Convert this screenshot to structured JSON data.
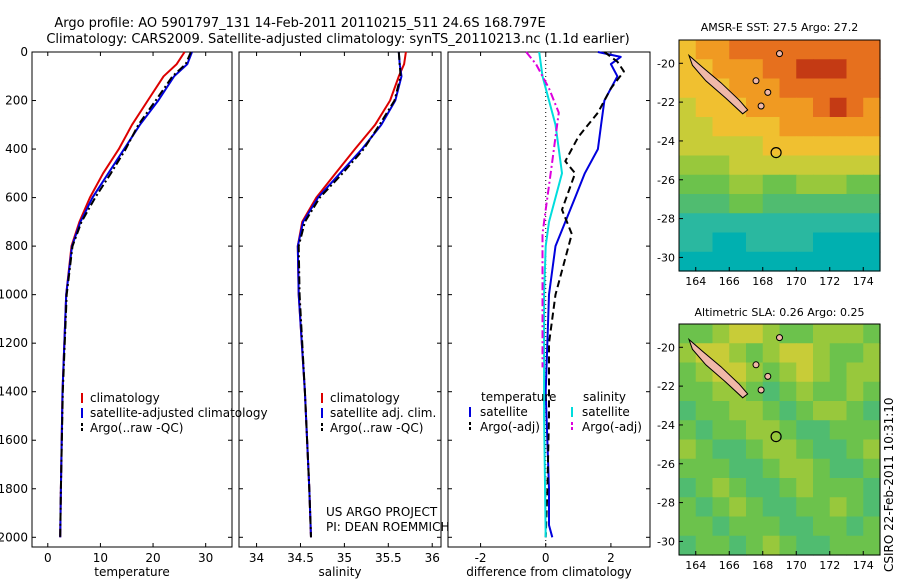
{
  "title": {
    "line1": "Argo profile: AO 5901797_131 14-Feb-2011 20110215_511 24.6S 168.797E",
    "line2": "Climatology: CARS2009. Satellite-adjusted climatology: synTS_20110213.nc (1.1d earlier)"
  },
  "credit": {
    "project": "US ARGO PROJECT",
    "pi": "PI: DEAN ROEMMICH",
    "stamp": "CSIRO 22-Feb-2011 10:31:10"
  },
  "chart_data": [
    {
      "type": "line",
      "id": "temperature",
      "xlabel": "temperature",
      "xticks": [
        0,
        10,
        20,
        30
      ],
      "xlim": [
        -3,
        35
      ],
      "yticks": [
        0,
        200,
        400,
        600,
        800,
        1000,
        1200,
        1400,
        1600,
        1800,
        2000
      ],
      "ylim": [
        2040,
        0
      ],
      "reversed_y": true,
      "legend": [
        "climatology",
        "satellite-adjusted climatology",
        "Argo(..raw -QC)"
      ],
      "series": [
        {
          "name": "climatology",
          "color": "#dd0000",
          "dash": "solid",
          "x": [
            26,
            24.5,
            22,
            19,
            16,
            13.5,
            10.5,
            8,
            6,
            4.5,
            3.5,
            2.8,
            2.5,
            2.35
          ],
          "y": [
            0,
            50,
            100,
            200,
            300,
            400,
            500,
            600,
            700,
            800,
            1000,
            1400,
            1800,
            2000
          ]
        },
        {
          "name": "satellite-adjusted climatology",
          "color": "#0000dd",
          "dash": "solid",
          "x": [
            27.4,
            26.5,
            24,
            21,
            17.5,
            14.5,
            11.5,
            8.5,
            6.2,
            4.6,
            3.5,
            2.8,
            2.5,
            2.35
          ],
          "y": [
            0,
            50,
            100,
            200,
            300,
            400,
            500,
            600,
            700,
            800,
            1000,
            1400,
            1800,
            2000
          ]
        },
        {
          "name": "Argo(..raw -QC)",
          "color": "#000000",
          "dash": "dashdot",
          "x": [
            27.2,
            26.2,
            23.7,
            20.5,
            17.2,
            14.8,
            12,
            9,
            6.4,
            4.7,
            3.6,
            2.85,
            2.5,
            2.35
          ],
          "y": [
            0,
            50,
            100,
            200,
            300,
            400,
            500,
            600,
            700,
            800,
            1000,
            1400,
            1800,
            2000
          ]
        }
      ]
    },
    {
      "type": "line",
      "id": "salinity",
      "xlabel": "salinity",
      "xticks": [
        34,
        34.5,
        35,
        35.5,
        36
      ],
      "xtick_labels": [
        "34",
        "34.5",
        "35",
        "35.5",
        "36"
      ],
      "xlim": [
        33.8,
        36.1
      ],
      "ylim": [
        2040,
        0
      ],
      "reversed_y": true,
      "legend": [
        "climatology",
        "satellite adj. clim.",
        "Argo(..raw -QC)"
      ],
      "series": [
        {
          "name": "climatology",
          "color": "#dd0000",
          "dash": "solid",
          "x": [
            35.7,
            35.68,
            35.62,
            35.52,
            35.35,
            35.12,
            34.9,
            34.68,
            34.52,
            34.47,
            34.48,
            34.55,
            34.6,
            34.62
          ],
          "y": [
            0,
            50,
            100,
            200,
            300,
            400,
            500,
            600,
            700,
            800,
            1000,
            1400,
            1800,
            2000
          ]
        },
        {
          "name": "satellite adj. clim.",
          "color": "#0000dd",
          "dash": "solid",
          "x": [
            35.62,
            35.63,
            35.65,
            35.58,
            35.42,
            35.2,
            34.95,
            34.7,
            34.53,
            34.47,
            34.48,
            34.55,
            34.6,
            34.62
          ],
          "y": [
            0,
            50,
            100,
            200,
            300,
            400,
            500,
            600,
            700,
            800,
            1000,
            1400,
            1800,
            2000
          ]
        },
        {
          "name": "Argo(..raw -QC)",
          "color": "#000000",
          "dash": "dashdot",
          "x": [
            35.62,
            35.63,
            35.64,
            35.57,
            35.4,
            35.22,
            34.98,
            34.72,
            34.55,
            34.48,
            34.49,
            34.55,
            34.6,
            34.62
          ],
          "y": [
            0,
            50,
            100,
            200,
            300,
            400,
            500,
            600,
            700,
            800,
            1000,
            1400,
            1800,
            2000
          ]
        }
      ]
    },
    {
      "type": "line",
      "id": "difference",
      "xlabel": "difference from climatology",
      "xticks": [
        -2,
        0,
        2
      ],
      "xlim": [
        -3,
        3.2
      ],
      "ylim": [
        2040,
        0
      ],
      "reversed_y": true,
      "legend_temperature_title": "temperature",
      "legend_salinity_title": "salinity",
      "legend": [
        "satellite",
        "Argo(-adj)",
        "satellite",
        "Argo(-adj)"
      ],
      "series": [
        {
          "name": "temperature satellite",
          "color": "#0000dd",
          "dash": "solid",
          "x": [
            1.6,
            2.3,
            2.0,
            2.2,
            1.8,
            1.7,
            1.6,
            1.2,
            0.9,
            0.6,
            0.3,
            0.1,
            0.0,
            0.1,
            0.1,
            0.2
          ],
          "y": [
            0,
            20,
            50,
            100,
            200,
            300,
            400,
            500,
            600,
            700,
            800,
            1000,
            1400,
            1800,
            1950,
            2000
          ]
        },
        {
          "name": "temperature Argo(-adj)",
          "color": "#000000",
          "dash": "dash",
          "x": [
            1.8,
            2.2,
            2.4,
            2.0,
            1.6,
            1.0,
            0.6,
            0.9,
            0.5,
            0.8,
            0.6,
            0.3,
            0.1,
            0.1,
            0.05,
            0.0
          ],
          "y": [
            0,
            40,
            80,
            150,
            250,
            350,
            450,
            500,
            650,
            750,
            850,
            1000,
            1200,
            1500,
            1800,
            2000
          ]
        },
        {
          "name": "salinity satellite",
          "color": "#00dddd",
          "dash": "solid",
          "x": [
            -0.2,
            -0.1,
            0.1,
            0.3,
            0.4,
            0.5,
            0.3,
            0.1,
            0.0,
            -0.05,
            -0.05,
            0.0
          ],
          "y": [
            0,
            100,
            200,
            300,
            400,
            500,
            600,
            700,
            800,
            1000,
            1500,
            2000
          ]
        },
        {
          "name": "salinity Argo(-adj)",
          "color": "#dd00dd",
          "dash": "dashdot",
          "x": [
            -0.6,
            -0.3,
            0.1,
            0.4,
            0.3,
            0.2,
            0.1,
            0.0,
            -0.1,
            -0.1,
            -0.1,
            -0.1
          ],
          "y": [
            0,
            50,
            150,
            250,
            350,
            450,
            550,
            650,
            750,
            900,
            1100,
            1300
          ]
        }
      ]
    },
    {
      "type": "heatmap",
      "id": "amsr-sst",
      "title": "AMSR-E SST: 27.5  Argo: 27.2",
      "xticks": [
        164,
        166,
        168,
        170,
        172,
        174
      ],
      "xlim": [
        163,
        175
      ],
      "yticks": [
        -20,
        -22,
        -24,
        -26,
        -28,
        -30
      ],
      "ylim": [
        -30.7,
        -18.8
      ],
      "argo_position": {
        "lon": 168.797,
        "lat": -24.6
      },
      "colors": [
        "#00b0b0",
        "#2ab8a0",
        "#50bc70",
        "#6cc24c",
        "#98c83c",
        "#c8cc38",
        "#f0c030",
        "#f09a22",
        "#e6701e",
        "#c43a14"
      ],
      "grid": [
        [
          6,
          7,
          7,
          8,
          8,
          8,
          8,
          8,
          8,
          8,
          8,
          8
        ],
        [
          6,
          6,
          7,
          7,
          7,
          8,
          8,
          9,
          9,
          9,
          8,
          8
        ],
        [
          6,
          6,
          6,
          7,
          7,
          7,
          8,
          8,
          8,
          8,
          8,
          8
        ],
        [
          5,
          6,
          6,
          6,
          7,
          7,
          7,
          7,
          8,
          9,
          8,
          7
        ],
        [
          5,
          5,
          6,
          6,
          6,
          6,
          7,
          7,
          7,
          7,
          7,
          7
        ],
        [
          5,
          5,
          5,
          5,
          5,
          6,
          6,
          6,
          6,
          6,
          6,
          6
        ],
        [
          4,
          4,
          4,
          5,
          5,
          5,
          5,
          5,
          5,
          5,
          5,
          5
        ],
        [
          3,
          3,
          3,
          4,
          4,
          3,
          3,
          4,
          4,
          4,
          3,
          3
        ],
        [
          2,
          2,
          2,
          3,
          3,
          2,
          2,
          2,
          2,
          2,
          2,
          2
        ],
        [
          1,
          1,
          1,
          1,
          1,
          1,
          1,
          1,
          1,
          1,
          1,
          1
        ],
        [
          1,
          1,
          0,
          0,
          1,
          1,
          1,
          1,
          0,
          0,
          0,
          0
        ],
        [
          0,
          0,
          0,
          0,
          0,
          0,
          0,
          0,
          0,
          0,
          0,
          0
        ]
      ]
    },
    {
      "type": "heatmap",
      "id": "altimetric-sla",
      "title": "Altimetric SLA: 0.26  Argo: 0.25",
      "xticks": [
        164,
        166,
        168,
        170,
        172,
        174
      ],
      "xlim": [
        163,
        175
      ],
      "yticks": [
        -20,
        -22,
        -24,
        -26,
        -28,
        -30
      ],
      "ylim": [
        -30.7,
        -18.8
      ],
      "argo_position": {
        "lon": 168.797,
        "lat": -24.6
      },
      "colors": [
        "#00b0b0",
        "#2ab8a0",
        "#50bc70",
        "#6cc24c",
        "#98c83c",
        "#c8cc38",
        "#f0c030",
        "#f09a22",
        "#e6701e",
        "#c43a14"
      ],
      "grid": [
        [
          3,
          3,
          4,
          5,
          5,
          4,
          3,
          3,
          4,
          4,
          4,
          3
        ],
        [
          4,
          5,
          5,
          4,
          3,
          4,
          5,
          5,
          4,
          3,
          3,
          4
        ],
        [
          3,
          4,
          5,
          5,
          4,
          3,
          4,
          5,
          4,
          3,
          4,
          4
        ],
        [
          3,
          3,
          4,
          4,
          3,
          2,
          3,
          4,
          3,
          3,
          4,
          3
        ],
        [
          2,
          3,
          3,
          4,
          4,
          3,
          2,
          3,
          4,
          4,
          3,
          2
        ],
        [
          3,
          2,
          3,
          3,
          4,
          4,
          3,
          2,
          2,
          3,
          3,
          3
        ],
        [
          4,
          3,
          2,
          2,
          3,
          4,
          4,
          3,
          2,
          2,
          3,
          4
        ],
        [
          3,
          3,
          3,
          2,
          2,
          3,
          4,
          4,
          3,
          2,
          2,
          3
        ],
        [
          2,
          3,
          4,
          3,
          2,
          2,
          3,
          4,
          3,
          3,
          3,
          2
        ],
        [
          3,
          2,
          3,
          4,
          3,
          2,
          2,
          3,
          3,
          4,
          3,
          2
        ],
        [
          3,
          3,
          2,
          3,
          3,
          3,
          2,
          2,
          3,
          3,
          2,
          3
        ],
        [
          2,
          3,
          3,
          2,
          3,
          4,
          3,
          2,
          2,
          3,
          3,
          3
        ]
      ]
    }
  ]
}
